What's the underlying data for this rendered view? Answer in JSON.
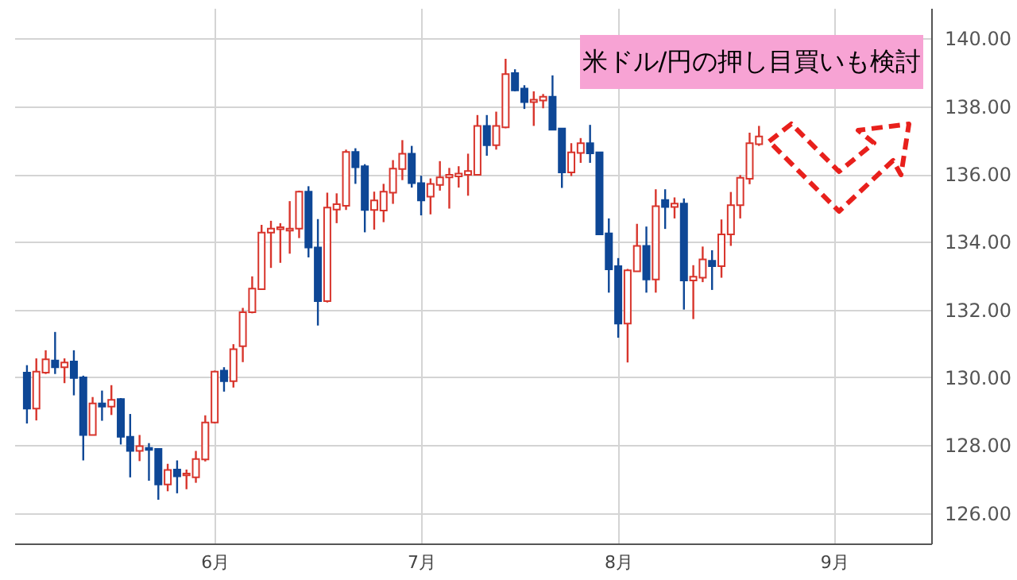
{
  "chart_data": {
    "type": "candlestick",
    "annotations": [
      "米ドル/円の押し目買いも検討"
    ],
    "categories": [
      null,
      null,
      null,
      null,
      null,
      null,
      null,
      null,
      null,
      null,
      null,
      null,
      null,
      null,
      null,
      null,
      null,
      null,
      null,
      null,
      "6月",
      null,
      null,
      null,
      null,
      null,
      null,
      null,
      null,
      null,
      null,
      null,
      null,
      null,
      null,
      null,
      null,
      null,
      null,
      null,
      null,
      null,
      "7月",
      null,
      null,
      null,
      null,
      null,
      null,
      null,
      null,
      null,
      null,
      null,
      null,
      null,
      null,
      null,
      null,
      null,
      null,
      null,
      null,
      "8月",
      null,
      null,
      null,
      null,
      null,
      null,
      null,
      null,
      null,
      null,
      null,
      null,
      null,
      null,
      null,
      null,
      null,
      null,
      null,
      null,
      null,
      null,
      "9月",
      null,
      null,
      null,
      null,
      null,
      null,
      null,
      null,
      null
    ],
    "ohlc": [
      [
        130.14,
        130.36,
        128.64,
        129.08
      ],
      [
        129.08,
        130.56,
        128.73,
        130.17
      ],
      [
        130.14,
        130.8,
        130.1,
        130.53
      ],
      [
        130.5,
        131.34,
        130.1,
        130.3
      ],
      [
        130.3,
        130.56,
        129.83,
        130.44
      ],
      [
        130.47,
        130.8,
        129.47,
        129.98
      ],
      [
        130.0,
        130.05,
        127.55,
        128.3
      ],
      [
        128.3,
        129.42,
        128.3,
        129.23
      ],
      [
        129.23,
        129.61,
        128.72,
        129.14
      ],
      [
        129.14,
        129.77,
        128.89,
        129.34
      ],
      [
        129.36,
        129.39,
        128.02,
        128.25
      ],
      [
        128.25,
        128.92,
        127.05,
        127.83
      ],
      [
        127.83,
        128.3,
        127.53,
        127.97
      ],
      [
        127.92,
        128.06,
        126.95,
        127.86
      ],
      [
        127.89,
        127.89,
        126.39,
        126.84
      ],
      [
        126.84,
        127.45,
        126.64,
        127.27
      ],
      [
        127.28,
        127.55,
        126.58,
        127.08
      ],
      [
        127.11,
        127.28,
        126.7,
        127.16
      ],
      [
        127.05,
        127.83,
        126.89,
        127.59
      ],
      [
        127.58,
        128.88,
        127.52,
        128.67
      ],
      [
        128.67,
        130.2,
        128.64,
        130.17
      ],
      [
        130.2,
        130.3,
        129.58,
        129.89
      ],
      [
        129.89,
        130.98,
        129.7,
        130.83
      ],
      [
        130.92,
        132.05,
        130.45,
        131.92
      ],
      [
        131.92,
        132.98,
        131.89,
        132.62
      ],
      [
        132.6,
        134.5,
        132.6,
        134.27
      ],
      [
        134.27,
        134.62,
        133.23,
        134.39
      ],
      [
        134.37,
        134.55,
        133.38,
        134.43
      ],
      [
        134.33,
        135.2,
        133.65,
        134.39
      ],
      [
        134.39,
        135.51,
        134.11,
        135.48
      ],
      [
        135.48,
        135.64,
        133.54,
        133.83
      ],
      [
        133.83,
        134.67,
        131.53,
        132.25
      ],
      [
        132.25,
        135.45,
        132.21,
        135.01
      ],
      [
        134.95,
        135.43,
        134.55,
        135.11
      ],
      [
        135.06,
        136.72,
        134.94,
        136.65
      ],
      [
        136.65,
        136.76,
        135.71,
        136.2
      ],
      [
        136.23,
        136.29,
        134.28,
        134.94
      ],
      [
        134.94,
        135.48,
        134.36,
        135.22
      ],
      [
        134.92,
        135.71,
        134.58,
        135.48
      ],
      [
        135.45,
        136.41,
        135.12,
        136.16
      ],
      [
        136.15,
        137.0,
        135.82,
        136.6
      ],
      [
        136.6,
        136.83,
        135.6,
        135.73
      ],
      [
        135.73,
        135.95,
        134.78,
        135.22
      ],
      [
        135.33,
        135.87,
        134.81,
        135.71
      ],
      [
        135.68,
        136.38,
        135.51,
        135.9
      ],
      [
        135.9,
        136.18,
        134.98,
        135.98
      ],
      [
        135.93,
        136.23,
        135.6,
        136.01
      ],
      [
        135.98,
        136.6,
        135.36,
        136.09
      ],
      [
        135.98,
        137.74,
        135.98,
        137.42
      ],
      [
        137.42,
        137.74,
        136.54,
        136.85
      ],
      [
        136.85,
        137.84,
        136.72,
        137.42
      ],
      [
        137.38,
        139.4,
        137.35,
        138.95
      ],
      [
        138.98,
        139.09,
        138.44,
        138.47
      ],
      [
        138.52,
        138.62,
        137.92,
        138.12
      ],
      [
        138.12,
        138.44,
        137.42,
        138.19
      ],
      [
        138.17,
        138.36,
        137.94,
        138.28
      ],
      [
        138.28,
        138.91,
        137.31,
        137.31
      ],
      [
        137.34,
        137.34,
        135.59,
        136.05
      ],
      [
        136.05,
        136.91,
        135.94,
        136.64
      ],
      [
        136.62,
        137.06,
        136.33,
        136.91
      ],
      [
        136.91,
        137.45,
        136.33,
        136.61
      ],
      [
        136.64,
        136.64,
        134.22,
        134.22
      ],
      [
        134.25,
        134.69,
        132.5,
        133.19
      ],
      [
        133.28,
        133.52,
        131.17,
        131.59
      ],
      [
        131.59,
        133.2,
        130.44,
        133.16
      ],
      [
        133.13,
        134.53,
        133.13,
        133.88
      ],
      [
        133.88,
        134.45,
        132.5,
        132.89
      ],
      [
        132.89,
        135.55,
        132.5,
        135.05
      ],
      [
        135.23,
        135.55,
        134.38,
        135.03
      ],
      [
        135.03,
        135.31,
        134.69,
        135.13
      ],
      [
        135.13,
        135.28,
        132.0,
        132.86
      ],
      [
        132.86,
        133.31,
        131.72,
        132.97
      ],
      [
        132.94,
        133.86,
        132.81,
        133.48
      ],
      [
        133.44,
        133.75,
        132.58,
        133.28
      ],
      [
        133.28,
        134.66,
        132.94,
        134.22
      ],
      [
        134.22,
        135.47,
        133.88,
        135.08
      ],
      [
        135.08,
        135.97,
        134.69,
        135.89
      ],
      [
        135.86,
        137.22,
        135.7,
        136.91
      ],
      [
        136.88,
        137.42,
        136.83,
        137.11
      ],
      null,
      null,
      null,
      null,
      null,
      null,
      null,
      null,
      null,
      null,
      null,
      null,
      null,
      null,
      null,
      null,
      null
    ],
    "ylim": [
      125.1,
      140.9
    ],
    "yticks": [
      {
        "value": 126,
        "label": "126.00"
      },
      {
        "value": 128,
        "label": "128.00"
      },
      {
        "value": 130,
        "label": "130.00"
      },
      {
        "value": 132,
        "label": "132.00"
      },
      {
        "value": 134,
        "label": "134.00"
      },
      {
        "value": 136,
        "label": "136.00"
      },
      {
        "value": 138,
        "label": "138.00"
      },
      {
        "value": 140,
        "label": "140.00"
      }
    ],
    "grid": true
  }
}
